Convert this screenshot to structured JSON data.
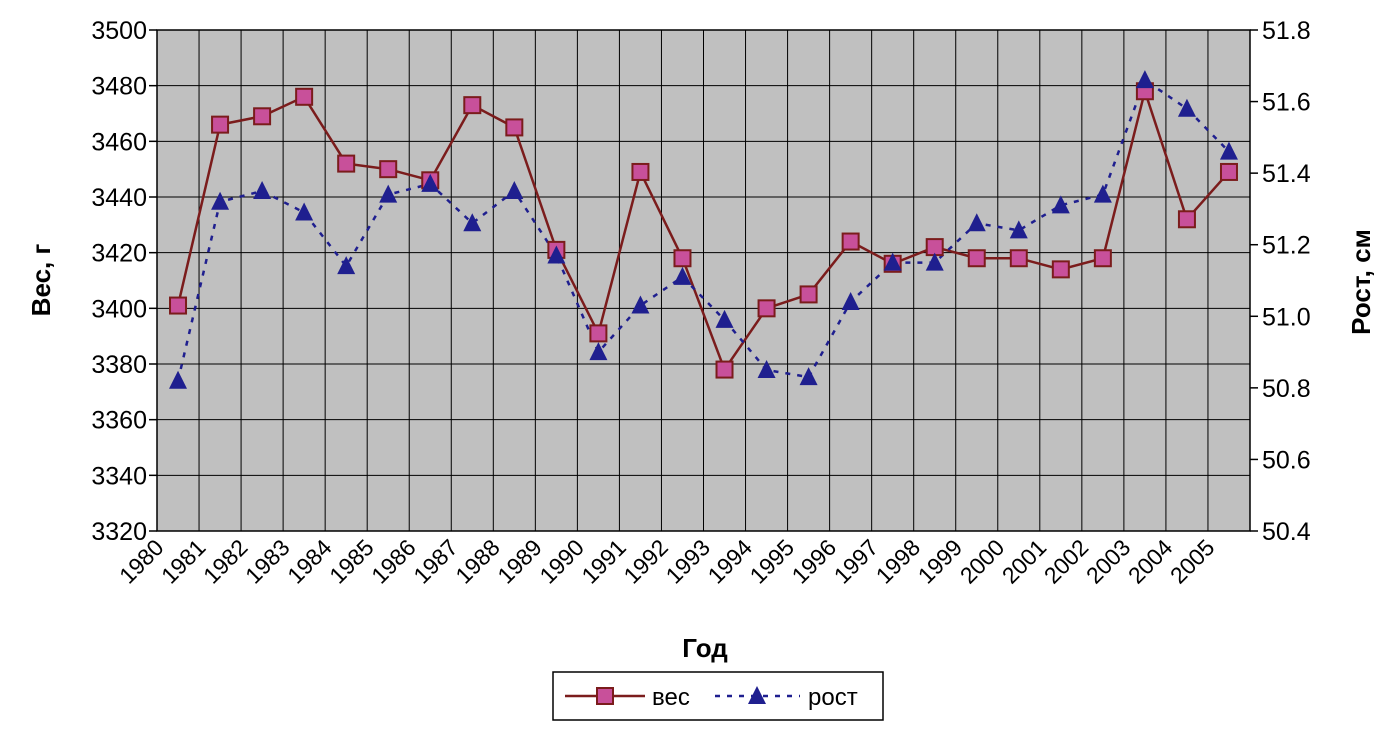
{
  "chart_data": {
    "type": "line",
    "xlabel": "Год",
    "ylabel": "Вес, г",
    "y2label": "Рост, см",
    "categories": [
      "1980",
      "1981",
      "1982",
      "1983",
      "1984",
      "1985",
      "1986",
      "1987",
      "1988",
      "1989",
      "1990",
      "1991",
      "1992",
      "1993",
      "1994",
      "1995",
      "1996",
      "1997",
      "1998",
      "1999",
      "2000",
      "2001",
      "2002",
      "2003",
      "2004",
      "2005"
    ],
    "ylim": [
      3320,
      3500
    ],
    "y_ticks": [
      "3320",
      "3340",
      "3360",
      "3380",
      "3400",
      "3420",
      "3440",
      "3460",
      "3480",
      "3500"
    ],
    "y2lim": [
      50.4,
      51.8
    ],
    "y2_ticks": [
      "50.4",
      "50.6",
      "50.8",
      "51.0",
      "51.2",
      "51.4",
      "51.6",
      "51.8"
    ],
    "grid": true,
    "legend_position": "bottom-center",
    "series": [
      {
        "name": "вес",
        "axis": "left",
        "style": "solid",
        "marker": "square",
        "color": "#7b1c1c",
        "marker_color": "#c8509a",
        "values": [
          3401,
          3466,
          3469,
          3476,
          3452,
          3450,
          3446,
          3473,
          3465,
          3421,
          3391,
          3449,
          3418,
          3378,
          3400,
          3405,
          3424,
          3416,
          3422,
          3418,
          3418,
          3414,
          3418,
          3478,
          3432,
          3449
        ]
      },
      {
        "name": "рост",
        "axis": "right",
        "style": "dotted",
        "marker": "triangle",
        "color": "#1f1f8f",
        "marker_color": "#1f1f8f",
        "values": [
          50.82,
          51.32,
          51.35,
          51.29,
          51.14,
          51.34,
          51.37,
          51.26,
          51.35,
          51.17,
          50.9,
          51.03,
          51.11,
          50.99,
          50.85,
          50.83,
          51.04,
          51.15,
          51.15,
          51.26,
          51.24,
          51.31,
          51.34,
          51.66,
          51.58,
          51.46
        ]
      }
    ]
  }
}
